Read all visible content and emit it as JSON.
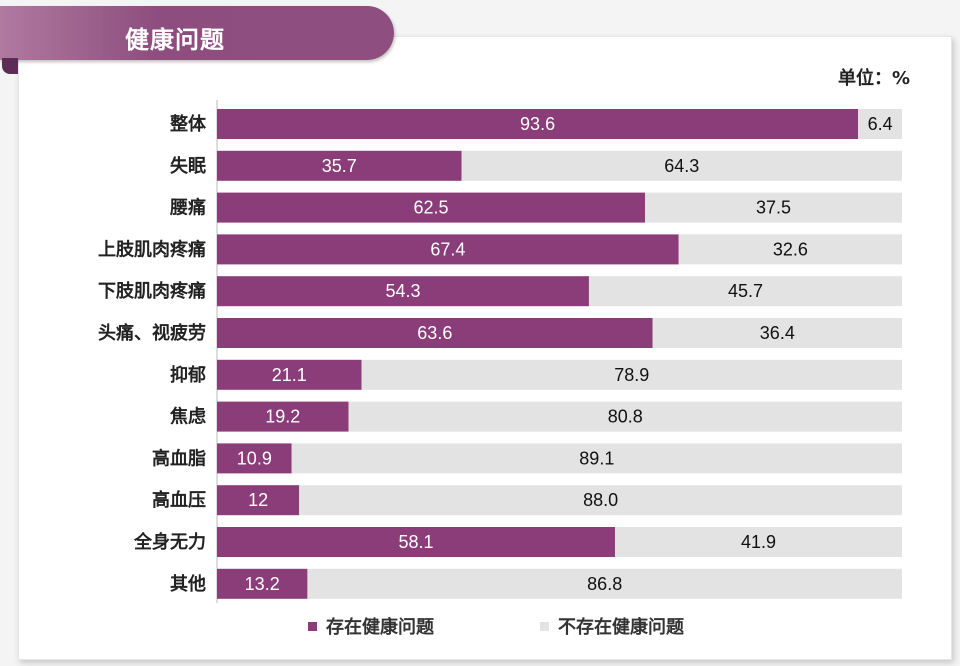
{
  "header": {
    "title": "健康问题",
    "unit_label": "单位：%"
  },
  "colors": {
    "present": "#8a3d78",
    "absent": "#e3e3e3",
    "axis": "#bbbbbb"
  },
  "chart_data": {
    "type": "bar",
    "orientation": "horizontal",
    "stacked": true,
    "title": "健康问题",
    "unit": "%",
    "xlim": [
      0,
      100
    ],
    "categories": [
      "整体",
      "失眠",
      "腰痛",
      "上肢肌肉疼痛",
      "下肢肌肉疼痛",
      "头痛、视疲劳",
      "抑郁",
      "焦虑",
      "高血脂",
      "高血压",
      "全身无力",
      "其他"
    ],
    "series": [
      {
        "name": "存在健康问题",
        "values": [
          93.6,
          35.7,
          62.5,
          67.4,
          54.3,
          63.6,
          21.1,
          19.2,
          10.9,
          12,
          58.1,
          13.2
        ],
        "labels": [
          "93.6",
          "35.7",
          "62.5",
          "67.4",
          "54.3",
          "63.6",
          "21.1",
          "19.2",
          "10.9",
          "12",
          "58.1",
          "13.2"
        ]
      },
      {
        "name": "不存在健康问题",
        "values": [
          6.4,
          64.3,
          37.5,
          32.6,
          45.7,
          36.4,
          78.9,
          80.8,
          89.1,
          88.0,
          41.9,
          86.8
        ],
        "labels": [
          "6.4",
          "64.3",
          "37.5",
          "32.6",
          "45.7",
          "36.4",
          "78.9",
          "80.8",
          "89.1",
          "88.0",
          "41.9",
          "86.8"
        ]
      }
    ],
    "legend": {
      "position": "bottom",
      "items": [
        "存在健康问题",
        "不存在健康问题"
      ]
    }
  }
}
